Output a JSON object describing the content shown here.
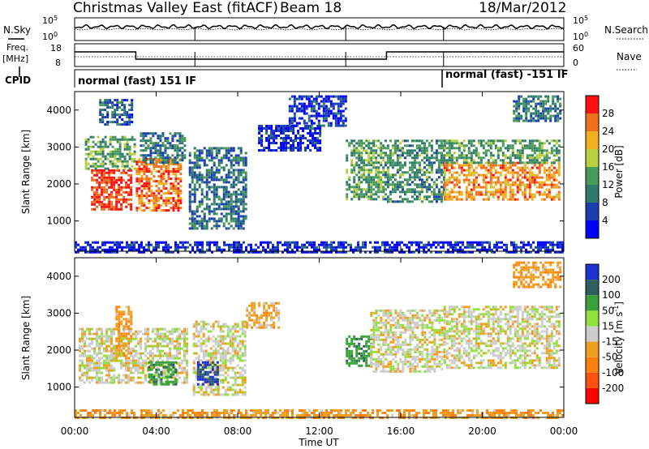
{
  "header": {
    "title": "Christmas Valley East (fitACF)",
    "beam": "Beam 18",
    "date": "18/Mar/2012"
  },
  "labels": {
    "n_sky": "N.Sky",
    "n_search": "N.Search",
    "freq": "Freq.",
    "freq_unit": "[MHz]",
    "nave": "Nave",
    "cpid": "CPID",
    "cpid_left": "normal (fast) 151 IF",
    "cpid_right": "normal (fast) -151 IF",
    "noise_ticks": [
      "10^5",
      "10^0"
    ],
    "noise_ticks_right": [
      "10^5",
      "10^0"
    ],
    "freq_ticks": [
      "18",
      "8"
    ],
    "nave_ticks": [
      "60",
      "0"
    ]
  },
  "colors": {
    "power_scale": [
      "#0000ff",
      "#1a3fb0",
      "#2f7a6a",
      "#4a9a5e",
      "#b8d040",
      "#f2b020",
      "#f07020",
      "#ff1010"
    ],
    "velocity_scale": [
      "#1c2fd0",
      "#2f6060",
      "#3aa03a",
      "#90e040",
      "#cccccc",
      "#f0a020",
      "#ff8010",
      "#ff5010",
      "#ff0000"
    ]
  },
  "chart_data": [
    {
      "type": "heatmap",
      "title": "",
      "xlabel": "Time UT",
      "ylabel": "Slant Range [km]",
      "x_ticks": [
        "00:00",
        "04:00",
        "08:00",
        "12:00",
        "16:00",
        "20:00",
        "00:00"
      ],
      "y_ticks": [
        "1000",
        "2000",
        "3000",
        "4000"
      ],
      "xlim": [
        0,
        24
      ],
      "ylim": [
        180,
        4500
      ],
      "colorbar": {
        "label": "Power [dB]",
        "ticks": [
          "4",
          "8",
          "12",
          "16",
          "20",
          "24",
          "28"
        ],
        "range": [
          0,
          32
        ]
      },
      "regions": [
        {
          "t": [
            0.8,
            2.8
          ],
          "r": [
            1300,
            2400
          ],
          "v": 29
        },
        {
          "t": [
            0.5,
            3.0
          ],
          "r": [
            2400,
            3300
          ],
          "v": 14
        },
        {
          "t": [
            1.2,
            2.8
          ],
          "r": [
            3600,
            4300
          ],
          "v": 8
        },
        {
          "t": [
            3.0,
            5.2
          ],
          "r": [
            1300,
            2700
          ],
          "v": 26
        },
        {
          "t": [
            3.2,
            5.4
          ],
          "r": [
            2600,
            3400
          ],
          "v": 10
        },
        {
          "t": [
            5.6,
            8.4
          ],
          "r": [
            800,
            3000
          ],
          "v": 9
        },
        {
          "t": [
            9.0,
            12.0
          ],
          "r": [
            2900,
            3600
          ],
          "v": 4
        },
        {
          "t": [
            10.5,
            13.3
          ],
          "r": [
            3600,
            4400
          ],
          "v": 5
        },
        {
          "t": [
            13.3,
            15.2
          ],
          "r": [
            1600,
            3200
          ],
          "v": 14
        },
        {
          "t": [
            15.2,
            18.1
          ],
          "r": [
            1500,
            3200
          ],
          "v": 12
        },
        {
          "t": [
            18.1,
            23.8
          ],
          "r": [
            1600,
            2600
          ],
          "v": 24
        },
        {
          "t": [
            18.1,
            23.8
          ],
          "r": [
            2600,
            3200
          ],
          "v": 13
        },
        {
          "t": [
            21.5,
            23.8
          ],
          "r": [
            3700,
            4400
          ],
          "v": 10
        },
        {
          "t": [
            0,
            24
          ],
          "r": [
            180,
            450
          ],
          "v": 4
        }
      ]
    },
    {
      "type": "heatmap",
      "title": "",
      "xlabel": "Time UT",
      "ylabel": "Slant Range [km]",
      "x_ticks": [
        "00:00",
        "04:00",
        "08:00",
        "12:00",
        "16:00",
        "20:00",
        "00:00"
      ],
      "y_ticks": [
        "1000",
        "2000",
        "3000",
        "4000"
      ],
      "xlim": [
        0,
        24
      ],
      "ylim": [
        180,
        4500
      ],
      "colorbar": {
        "label": "Velocity [m s^-1]",
        "ticks": [
          "200",
          "100",
          "50",
          "15",
          "-15",
          "-50",
          "-100",
          "-200"
        ],
        "range": [
          -250,
          250
        ]
      },
      "regions": [
        {
          "t": [
            0.2,
            5.5
          ],
          "r": [
            1100,
            2600
          ],
          "v": 0
        },
        {
          "t": [
            2.0,
            2.8
          ],
          "r": [
            1800,
            3200
          ],
          "v": -40
        },
        {
          "t": [
            3.6,
            5.0
          ],
          "r": [
            1100,
            1700
          ],
          "v": 60
        },
        {
          "t": [
            5.8,
            8.4
          ],
          "r": [
            800,
            2800
          ],
          "v": 0
        },
        {
          "t": [
            6.0,
            7.0
          ],
          "r": [
            1100,
            1700
          ],
          "v": 150
        },
        {
          "t": [
            8.4,
            10.0
          ],
          "r": [
            2600,
            3300
          ],
          "v": -30
        },
        {
          "t": [
            13.3,
            14.5
          ],
          "r": [
            1600,
            2400
          ],
          "v": 60
        },
        {
          "t": [
            14.5,
            18.1
          ],
          "r": [
            1400,
            3100
          ],
          "v": 0
        },
        {
          "t": [
            18.1,
            23.8
          ],
          "r": [
            1500,
            3200
          ],
          "v": 0
        },
        {
          "t": [
            21.5,
            23.8
          ],
          "r": [
            3700,
            4400
          ],
          "v": -40
        },
        {
          "t": [
            0,
            24
          ],
          "r": [
            180,
            400
          ],
          "v": -40
        }
      ]
    }
  ]
}
